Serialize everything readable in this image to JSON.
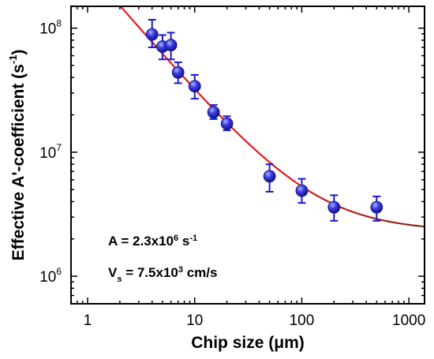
{
  "chart_data": {
    "type": "scatter",
    "xlabel": "Chip size (μm)",
    "ylabel": "Effective A'-coefficient (s⁻¹)",
    "xscale": "log",
    "yscale": "log",
    "xlim": [
      0.7,
      1400
    ],
    "ylim": [
      600000,
      150000000
    ],
    "grid": false,
    "x_tick_values": [
      1,
      10,
      100,
      1000
    ],
    "x_tick_labels": [
      "1",
      "10",
      "100",
      "1000"
    ],
    "y_tick_values": [
      1000000,
      10000000,
      100000000
    ],
    "y_tick_labels": [
      {
        "base": "10",
        "exp": "6"
      },
      {
        "base": "10",
        "exp": "7"
      },
      {
        "base": "10",
        "exp": "8"
      }
    ],
    "series": [
      {
        "kind": "points_with_error_bars",
        "color": "#1a1acc",
        "x": [
          4,
          5,
          6,
          7,
          10,
          15,
          20,
          50,
          100,
          200,
          500
        ],
        "y": [
          89000000,
          71000000,
          73000000,
          44000000,
          34000000,
          21000000,
          17000000,
          6400000,
          4900000,
          3600000,
          3600000
        ],
        "err_low": [
          19000000,
          15000000,
          17000000,
          8000000,
          7000000,
          2500000,
          2000000,
          1600000,
          1000000,
          800000,
          800000
        ],
        "err_high": [
          28000000,
          17000000,
          19000000,
          9000000,
          8000000,
          3000000,
          2500000,
          1600000,
          1200000,
          900000,
          800000
        ]
      },
      {
        "kind": "fit_curve",
        "model": "A + 4*Vs/L",
        "color": "#e8191d",
        "color_end": "#7a2a1c",
        "x_range": [
          2,
          1400
        ],
        "A": 2300000,
        "Vs_cm_per_s": 7500
      }
    ],
    "annotations": [
      {
        "prefix": "A = 2.3x10",
        "exp": "6",
        "unit": " s",
        "unit_exp": "-1"
      },
      {
        "name": "V",
        "sub": "s",
        "prefix": " = 7.5x10",
        "exp": "3",
        "unit": " cm/s"
      }
    ]
  }
}
